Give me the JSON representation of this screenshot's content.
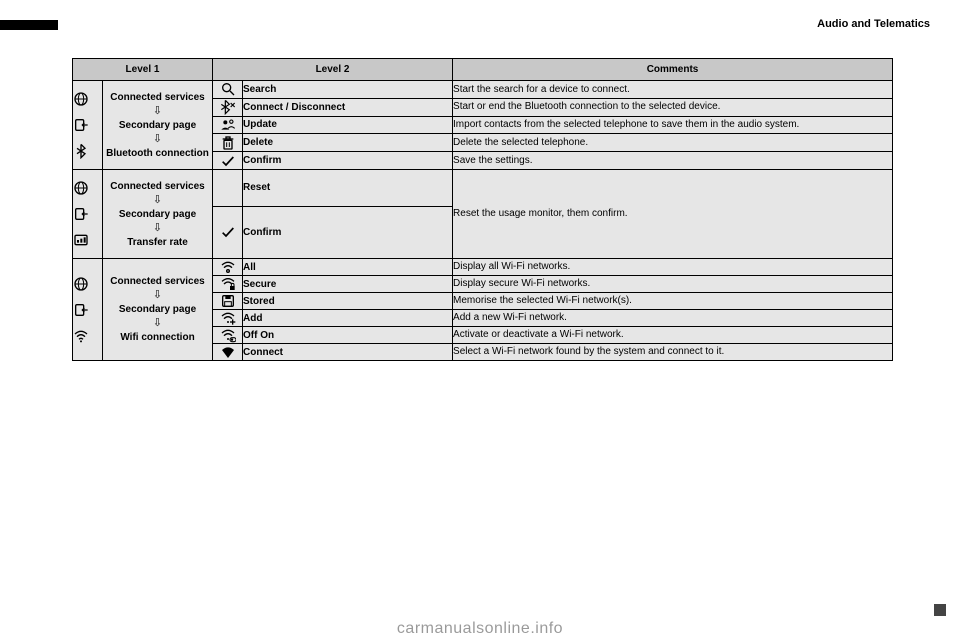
{
  "section_title": "Audio and Telematics",
  "watermark": "carmanualsonline.info",
  "headers": {
    "level1": "Level 1",
    "level2": "Level 2",
    "comments": "Comments"
  },
  "colors": {
    "header_bg": "#c8c8c8",
    "cell_bg": "#e6e6e6",
    "border": "#000000",
    "text": "#000000"
  },
  "groups": [
    {
      "icons": [
        "globe",
        "import",
        "bluetooth"
      ],
      "nav": [
        "Connected services",
        "Secondary page",
        "Bluetooth connection"
      ],
      "rows": [
        {
          "icon": "search",
          "label": "Search",
          "comment": "Start the search for a device to connect."
        },
        {
          "icon": "bt-x",
          "label": "Connect / Disconnect",
          "comment": "Start or end the Bluetooth connection to the selected device."
        },
        {
          "icon": "contacts",
          "label": "Update",
          "comment": "Import contacts from the selected telephone to save them in the audio system."
        },
        {
          "icon": "trash",
          "label": "Delete",
          "comment": "Delete the selected telephone."
        },
        {
          "icon": "check",
          "label": "Confirm",
          "comment": "Save the settings."
        }
      ]
    },
    {
      "icons": [
        "globe",
        "import",
        "meter"
      ],
      "nav": [
        "Connected services",
        "Secondary page",
        "Transfer rate"
      ],
      "rows": [
        {
          "icon": "",
          "label": "Reset",
          "comment_rowspan": 2,
          "comment": "Reset the usage monitor, them confirm."
        },
        {
          "icon": "check",
          "label": "Confirm"
        }
      ]
    },
    {
      "icons": [
        "globe",
        "import",
        "wifi"
      ],
      "nav": [
        "Connected services",
        "Secondary page",
        "Wifi connection"
      ],
      "rows": [
        {
          "icon": "wifi-open",
          "label": "All",
          "comment": "Display all Wi-Fi networks."
        },
        {
          "icon": "wifi-lock",
          "label": "Secure",
          "comment": "Display secure Wi-Fi networks."
        },
        {
          "icon": "save",
          "label": "Stored",
          "comment": "Memorise the selected Wi-Fi network(s)."
        },
        {
          "icon": "wifi-plus",
          "label": "Add",
          "comment": "Add a new Wi-Fi network."
        },
        {
          "icon": "wifi-toggle",
          "label": "Off On",
          "comment": "Activate or deactivate a Wi-Fi network."
        },
        {
          "icon": "wifi-solid",
          "label": "Connect",
          "comment": "Select a Wi-Fi network found by the system and connect to it."
        }
      ]
    }
  ]
}
